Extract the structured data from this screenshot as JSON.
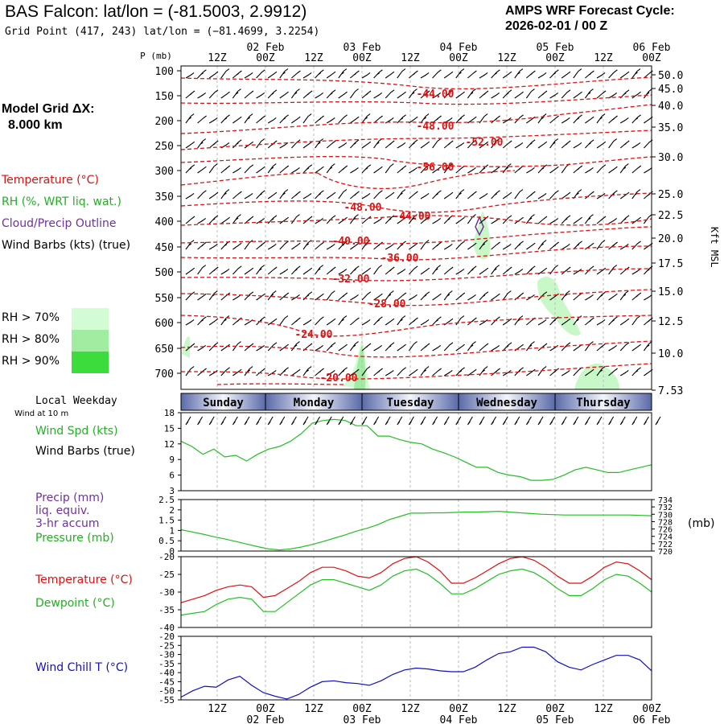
{
  "header": {
    "title": "BAS Falcon:  lat/lon = (-81.5003, 2.9912)",
    "subtitle": "Grid Point (417, 243) lat/lon = (−81.4699, 3.2254)",
    "cycle_line1": "AMPS WRF Forecast Cycle:",
    "cycle_line2": "2026-02-01 / 00  Z"
  },
  "left_panel": {
    "grid_title": "Model Grid ΔX:",
    "grid_value": "8.000 km",
    "temp_label": "Temperature (°C)",
    "rh_label": "RH (%, WRT liq. wat.)",
    "cloud_label": "Cloud/Precip Outline",
    "wind_label": "Wind Barbs (kts) (true)",
    "rh70": "RH > 70%",
    "rh80": "RH > 80%",
    "rh90": "RH > 90%",
    "rh_colors": [
      "#d4fcd4",
      "#a0eca0",
      "#3cdc3c"
    ]
  },
  "time_axis": {
    "top_hours": [
      "12Z",
      "00Z",
      "12Z",
      "00Z",
      "12Z",
      "00Z",
      "12Z",
      "00Z",
      "12Z",
      "00Z"
    ],
    "top_dates": [
      "02 Feb",
      "03 Feb",
      "04 Feb",
      "05 Feb",
      "06 Feb"
    ],
    "bottom_hours": [
      "12Z",
      "00Z",
      "12Z",
      "00Z",
      "12Z",
      "00Z",
      "12Z",
      "00Z",
      "12Z",
      "00Z"
    ],
    "bottom_dates": [
      "02 Feb",
      "03 Feb",
      "04 Feb",
      "05 Feb",
      "06 Feb"
    ],
    "weekday_label": "Local Weekday",
    "weekdays": [
      "Sunday",
      "Monday",
      "Tuesday",
      "Wednesday",
      "Thursday"
    ]
  },
  "chart_data": [
    {
      "type": "line",
      "name": "cross-section",
      "ylabel": "P (mb)",
      "pressure_ticks": [
        "100",
        "150",
        "200",
        "250",
        "300",
        "350",
        "400",
        "450",
        "500",
        "550",
        "600",
        "650",
        "700"
      ],
      "height_ticks": [
        "50.0",
        "45.0",
        "40.0",
        "35.0",
        "30.0",
        "25.0",
        "22.5",
        "20.0",
        "17.5",
        "15.0",
        "12.5",
        "10.0",
        "7.53"
      ],
      "right_axis_label": "Kft MSL",
      "temperature_labels": [
        "-44.00",
        "-48.00",
        "-52.00",
        "-56.00",
        "-48.00",
        "-44.00",
        "-40.00",
        "-36.00",
        "-32.00",
        "-28.00",
        "-24.00",
        "-20.00"
      ]
    },
    {
      "type": "line",
      "name": "wind",
      "header": "Wind at 10 m",
      "label1": "Wind Spd (kts)",
      "label2": "Wind Barbs (true)",
      "y_ticks": [
        "18",
        "15",
        "12",
        "9",
        "6",
        "3"
      ],
      "ylim": [
        3,
        18
      ],
      "series": [
        {
          "name": "Wind Spd (kts)",
          "color": "#22c022",
          "values": [
            12.5,
            11.5,
            10,
            11,
            9.5,
            9.8,
            8.7,
            10,
            11,
            11.5,
            12.5,
            14,
            16,
            16.5,
            16.7,
            16.5,
            15.5,
            15.5,
            13.5,
            13.5,
            12.8,
            12.3,
            12,
            11,
            10.3,
            9.5,
            8.5,
            7.5,
            7.5,
            6.5,
            6,
            5.7,
            5,
            5,
            5.2,
            6,
            7,
            7.5,
            7,
            6.5,
            6.5,
            7,
            7.5,
            8
          ]
        }
      ]
    },
    {
      "type": "line",
      "name": "precip-pressure",
      "label1": "Precip (mm)",
      "label2": "liq. equiv.",
      "label3": "3-hr accum",
      "label4": "Pressure (mb)",
      "unit_right": "(mb)",
      "left_ticks": [
        "2.5",
        "2",
        "1.5",
        "1",
        "0.5",
        "0"
      ],
      "right_ticks": [
        "734",
        "732",
        "730",
        "728",
        "726",
        "724",
        "722",
        "720"
      ],
      "ylim_left": [
        0,
        2.5
      ],
      "ylim_right": [
        720,
        734
      ],
      "series": [
        {
          "name": "Pressure (mb)",
          "color": "#22c022",
          "values": [
            725.8,
            725.2,
            724.6,
            723.9,
            723.3,
            722.6,
            721.9,
            721.2,
            720.6,
            720.3,
            720.6,
            721.1,
            721.8,
            722.6,
            723.5,
            724.4,
            725.4,
            726.2,
            727.2,
            728.5,
            729.4,
            730.3,
            730.3,
            730.4,
            730.4,
            730.5,
            730.6,
            730.6,
            730.7,
            730.8,
            730.6,
            730.4,
            730.2,
            730.0,
            729.9,
            729.8,
            729.8,
            729.8,
            729.8,
            729.8,
            729.8,
            729.8,
            729.7,
            729.6
          ]
        }
      ]
    },
    {
      "type": "line",
      "name": "temp-dewpoint",
      "label1": "Temperature (°C)",
      "label2": "Dewpoint (°C)",
      "y_ticks": [
        "-20",
        "-25",
        "-30",
        "-35",
        "-40"
      ],
      "ylim": [
        -40,
        -20
      ],
      "series": [
        {
          "name": "Temperature (°C)",
          "color": "#e01010",
          "values": [
            -33,
            -32,
            -31,
            -29.5,
            -28.5,
            -28,
            -28.5,
            -31.5,
            -31,
            -29,
            -27,
            -24.5,
            -23,
            -23,
            -24,
            -25.5,
            -26,
            -24.5,
            -22,
            -20.5,
            -20,
            -21.5,
            -24,
            -27.5,
            -27.5,
            -26,
            -24,
            -22,
            -20.5,
            -20,
            -21,
            -23,
            -25.5,
            -27.5,
            -27.5,
            -25.5,
            -23,
            -21.5,
            -22,
            -24,
            -26.5
          ]
        },
        {
          "name": "Dewpoint (°C)",
          "color": "#22c022",
          "values": [
            -36.5,
            -36,
            -35.5,
            -33.5,
            -32,
            -31.5,
            -32,
            -35.5,
            -35.5,
            -33,
            -30.5,
            -28,
            -26.5,
            -26.5,
            -27.5,
            -28.5,
            -29.5,
            -28,
            -25.5,
            -24,
            -23.5,
            -25,
            -27.5,
            -30.5,
            -30.5,
            -29,
            -27,
            -25,
            -24,
            -23.5,
            -24.5,
            -26.5,
            -29,
            -31,
            -31,
            -29,
            -26.5,
            -25,
            -25.5,
            -27.5,
            -30
          ]
        }
      ]
    },
    {
      "type": "line",
      "name": "wind-chill",
      "label1": "Wind Chill T (°C)",
      "y_ticks": [
        "-20",
        "-25",
        "-30",
        "-35",
        "-40",
        "-45",
        "-50",
        "-55"
      ],
      "ylim": [
        -55,
        -20
      ],
      "series": [
        {
          "name": "Wind Chill T (°C)",
          "color": "#1010c0",
          "values": [
            -53.5,
            -50,
            -47.5,
            -48,
            -44,
            -42,
            -47,
            -51,
            -53,
            -54.5,
            -52,
            -48,
            -45,
            -44.5,
            -45.5,
            -46,
            -47,
            -44.5,
            -41,
            -38.5,
            -37.5,
            -38,
            -39,
            -39.5,
            -39.5,
            -37,
            -33,
            -29.5,
            -28.5,
            -26,
            -26,
            -28.5,
            -34,
            -37,
            -38.5,
            -35.5,
            -33,
            -30.5,
            -30.5,
            -33,
            -39
          ]
        }
      ]
    }
  ]
}
